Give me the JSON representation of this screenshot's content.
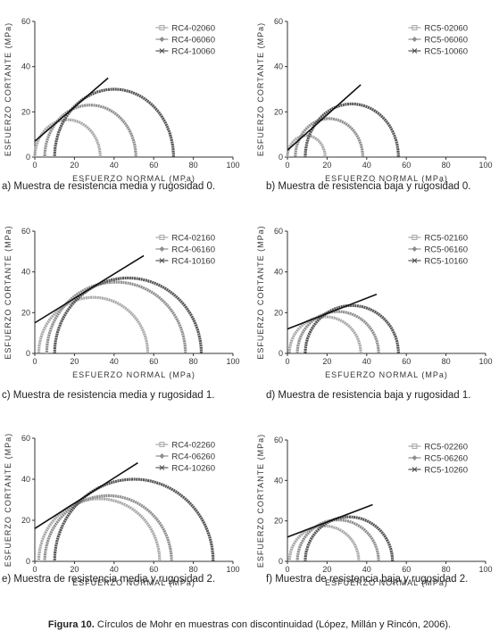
{
  "figure_caption": {
    "label": "Figura 10.",
    "text": " Círculos de Mohr en muestras con discontinuidad (López, Millán y Rincón, 2006)."
  },
  "colors": {
    "circle_light": "#a8a8a8",
    "circle_mid": "#8e8e8e",
    "circle_dark": "#555555",
    "envelope": "#111111"
  },
  "chart_data": [
    {
      "type": "line",
      "caption": "a) Muestra de resistencia media y rugosidad 0.",
      "xlabel": "ESFUERZO NORMAL (MPa)",
      "ylabel": "ESFUERZO CORTANTE (MPa)",
      "xlim": [
        0,
        100
      ],
      "ylim": [
        0,
        60
      ],
      "xticks": [
        0,
        20,
        40,
        60,
        80,
        100
      ],
      "yticks": [
        0,
        20,
        40,
        60
      ],
      "legend_position": "top-right",
      "series": [
        {
          "name": "RC4-02060",
          "circle": [
            0,
            33
          ]
        },
        {
          "name": "RC4-06060",
          "circle": [
            5,
            51
          ]
        },
        {
          "name": "RC4-10060",
          "circle": [
            10,
            70
          ]
        }
      ],
      "envelope": [
        [
          0,
          7
        ],
        [
          37,
          35
        ]
      ]
    },
    {
      "type": "line",
      "caption": "b) Muestra de resistencia baja y rugosidad 0.",
      "xlabel": "ESFUERZO NORMAL (MPa)",
      "ylabel": "ESFUERZO CORTANTE (MPa)",
      "xlim": [
        0,
        100
      ],
      "ylim": [
        0,
        60
      ],
      "xticks": [
        0,
        20,
        40,
        60,
        80,
        100
      ],
      "yticks": [
        0,
        20,
        40,
        60
      ],
      "legend_position": "top-right",
      "series": [
        {
          "name": "RC5-02060",
          "circle": [
            0,
            19
          ]
        },
        {
          "name": "RC5-06060",
          "circle": [
            4,
            38
          ]
        },
        {
          "name": "RC5-10060",
          "circle": [
            9,
            56
          ]
        }
      ],
      "envelope": [
        [
          0,
          3
        ],
        [
          37,
          32
        ]
      ]
    },
    {
      "type": "line",
      "caption": "c) Muestra de resistencia media y rugosidad 1.",
      "xlabel": "ESFUERZO NORMAL (MPa)",
      "ylabel": "ESFUERZO CORTANTE (MPa)",
      "xlim": [
        0,
        100
      ],
      "ylim": [
        0,
        60
      ],
      "xticks": [
        0,
        20,
        40,
        60,
        80,
        100
      ],
      "yticks": [
        0,
        20,
        40,
        60
      ],
      "legend_position": "top-right",
      "series": [
        {
          "name": "RC4-02160",
          "circle": [
            2,
            57
          ]
        },
        {
          "name": "RC4-06160",
          "circle": [
            6,
            76
          ]
        },
        {
          "name": "RC4-10160",
          "circle": [
            10,
            84
          ]
        }
      ],
      "envelope": [
        [
          0,
          15
        ],
        [
          55,
          48
        ]
      ]
    },
    {
      "type": "line",
      "caption": "d) Muestra de resistencia baja y rugosidad 1.",
      "xlabel": "ESFUERZO NORMAL (MPa)",
      "ylabel": "ESFUERZO CORTANTE (MPa)",
      "xlim": [
        0,
        100
      ],
      "ylim": [
        0,
        60
      ],
      "xticks": [
        0,
        20,
        40,
        60,
        80,
        100
      ],
      "yticks": [
        0,
        20,
        40,
        60
      ],
      "legend_position": "top-right",
      "series": [
        {
          "name": "RC5-02160",
          "circle": [
            1,
            37
          ]
        },
        {
          "name": "RC5-06160",
          "circle": [
            5,
            46
          ]
        },
        {
          "name": "RC5-10160",
          "circle": [
            9,
            56
          ]
        }
      ],
      "envelope": [
        [
          0,
          12
        ],
        [
          45,
          29
        ]
      ]
    },
    {
      "type": "line",
      "caption": "e) Muestra de resistencia media y rugosidad 2.",
      "xlabel": "ESFUERZO NORMAL (MPa)",
      "ylabel": "ESFUERZO CORTANTE (MPa)",
      "xlim": [
        0,
        100
      ],
      "ylim": [
        0,
        60
      ],
      "xticks": [
        0,
        20,
        40,
        60,
        80,
        100
      ],
      "yticks": [
        0,
        20,
        40,
        60
      ],
      "legend_position": "top-right",
      "series": [
        {
          "name": "RC4-02260",
          "circle": [
            2,
            63
          ]
        },
        {
          "name": "RC4-06260",
          "circle": [
            5,
            69
          ]
        },
        {
          "name": "RC4-10260",
          "circle": [
            10,
            90
          ]
        }
      ],
      "envelope": [
        [
          0,
          16
        ],
        [
          52,
          48
        ]
      ]
    },
    {
      "type": "line",
      "caption": "f) Muestra de resistencia baja y rugosidad 2.",
      "xlabel": "ESFUERZO NORMAL (MPa)",
      "ylabel": "ESFUERZO CORTANTE (MPa)",
      "xlim": [
        0,
        100
      ],
      "ylim": [
        0,
        60
      ],
      "xticks": [
        0,
        20,
        40,
        60,
        80,
        100
      ],
      "yticks": [
        0,
        20,
        40,
        60
      ],
      "legend_position": "top-right",
      "series": [
        {
          "name": "RC5-02260",
          "circle": [
            1,
            36
          ]
        },
        {
          "name": "RC5-06260",
          "circle": [
            5,
            46
          ]
        },
        {
          "name": "RC5-10260",
          "circle": [
            9,
            53
          ]
        }
      ],
      "envelope": [
        [
          0,
          12
        ],
        [
          43,
          28
        ]
      ]
    }
  ]
}
